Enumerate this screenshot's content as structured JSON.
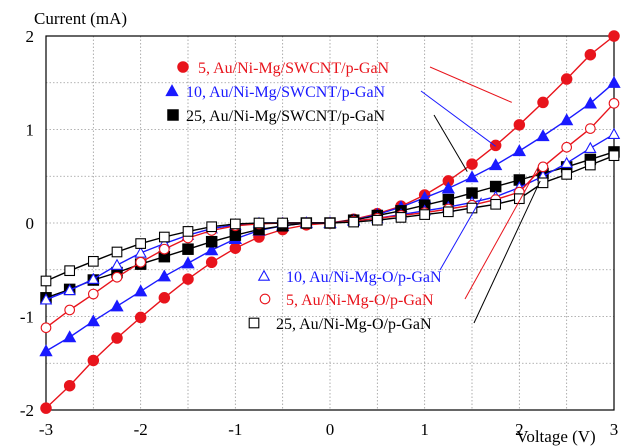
{
  "chart_data": {
    "type": "line",
    "title": "",
    "xlabel": "Voltage (V)",
    "ylabel": "Current (mA)",
    "xlim": [
      -3,
      3
    ],
    "ylim": [
      -2,
      2
    ],
    "x_ticks": [
      -3,
      -2,
      -1,
      0,
      1,
      2,
      3
    ],
    "y_ticks": [
      -2,
      -1,
      0,
      1,
      2
    ],
    "x_tick_labels": [
      "-3",
      "-2",
      "-1",
      "0",
      "1",
      "2",
      "3"
    ],
    "y_tick_labels": [
      "-2",
      "-1",
      "0",
      "1",
      "2"
    ],
    "grid": true,
    "x": [
      -3.0,
      -2.75,
      -2.5,
      -2.25,
      -2.0,
      -1.75,
      -1.5,
      -1.25,
      -1.0,
      -0.75,
      -0.5,
      -0.25,
      0.0,
      0.25,
      0.5,
      0.75,
      1.0,
      1.25,
      1.5,
      1.75,
      2.0,
      2.25,
      2.5,
      2.75,
      3.0
    ],
    "series": [
      {
        "name": "5, Au/Ni-Mg/SWCNT/p-GaN",
        "color": "#e8141c",
        "marker": "circle",
        "filled": true,
        "values": [
          -1.98,
          -1.74,
          -1.47,
          -1.23,
          -1.01,
          -0.8,
          -0.6,
          -0.42,
          -0.27,
          -0.15,
          -0.07,
          -0.02,
          0.0,
          0.04,
          0.1,
          0.18,
          0.3,
          0.45,
          0.63,
          0.83,
          1.05,
          1.29,
          1.54,
          1.8,
          2.0
        ]
      },
      {
        "name": "10, Au/Ni-Mg/SWCNT/p-GaN",
        "color": "#1a1aff",
        "marker": "triangle",
        "filled": true,
        "values": [
          -1.37,
          -1.22,
          -1.05,
          -0.89,
          -0.73,
          -0.57,
          -0.43,
          -0.29,
          -0.17,
          -0.08,
          -0.03,
          0.0,
          0.0,
          0.03,
          0.09,
          0.17,
          0.27,
          0.37,
          0.49,
          0.62,
          0.77,
          0.93,
          1.1,
          1.28,
          1.5
        ]
      },
      {
        "name": "25, Au/Ni-Mg/SWCNT/p-GaN",
        "color": "#000000",
        "marker": "square",
        "filled": true,
        "values": [
          -0.8,
          -0.71,
          -0.61,
          -0.53,
          -0.44,
          -0.36,
          -0.28,
          -0.2,
          -0.13,
          -0.07,
          -0.03,
          0.0,
          0.0,
          0.03,
          0.08,
          0.13,
          0.19,
          0.25,
          0.32,
          0.39,
          0.46,
          0.53,
          0.6,
          0.68,
          0.76
        ]
      },
      {
        "name": "10, Au/Ni-Mg-O/p-GaN",
        "color": "#1a1aff",
        "marker": "triangle",
        "filled": false,
        "values": [
          -0.82,
          -0.72,
          -0.6,
          -0.45,
          -0.32,
          -0.22,
          -0.13,
          -0.06,
          -0.02,
          0.0,
          0.0,
          0.0,
          0.0,
          0.02,
          0.05,
          0.09,
          0.13,
          0.17,
          0.22,
          0.28,
          0.38,
          0.5,
          0.64,
          0.8,
          0.95
        ]
      },
      {
        "name": "5, Au/Ni-Mg-O/p-GaN",
        "color": "#e8141c",
        "marker": "circle",
        "filled": false,
        "values": [
          -1.12,
          -0.93,
          -0.76,
          -0.58,
          -0.42,
          -0.28,
          -0.16,
          -0.08,
          -0.03,
          -0.01,
          0.0,
          0.0,
          0.0,
          0.02,
          0.05,
          0.08,
          0.11,
          0.15,
          0.19,
          0.25,
          0.33,
          0.6,
          0.81,
          1.01,
          1.28
        ]
      },
      {
        "name": "25, Au/Ni-Mg-O/p-GaN",
        "color": "#000000",
        "marker": "square",
        "filled": false,
        "values": [
          -0.62,
          -0.51,
          -0.41,
          -0.31,
          -0.22,
          -0.15,
          -0.09,
          -0.04,
          -0.01,
          0.0,
          0.0,
          0.0,
          0.0,
          0.01,
          0.03,
          0.06,
          0.09,
          0.12,
          0.16,
          0.2,
          0.26,
          0.43,
          0.52,
          0.62,
          0.72
        ]
      }
    ],
    "legend": [
      {
        "series": 0,
        "placement": "top-center"
      },
      {
        "series": 1,
        "placement": "top-center"
      },
      {
        "series": 2,
        "placement": "top-center"
      },
      {
        "series": 3,
        "placement": "bottom-center"
      },
      {
        "series": 4,
        "placement": "bottom-center"
      },
      {
        "series": 5,
        "placement": "bottom-center"
      }
    ],
    "annotations": "leader lines connect each legend label to its curve"
  }
}
